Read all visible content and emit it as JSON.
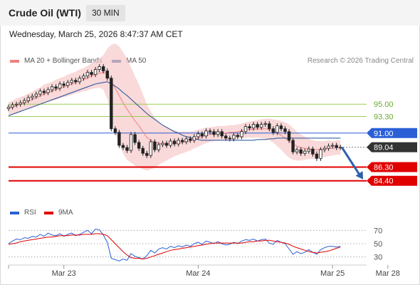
{
  "header": {
    "instrument": "Crude Oil (WTI)",
    "timeframe": "30 MIN",
    "datetime": "Wednesday, March 25, 2026 8:47:37 AM CET"
  },
  "legend": {
    "items": [
      {
        "label": "MA 20 + Bollinger Bands",
        "color": "#f08080"
      },
      {
        "label": "MA 50",
        "color": "#1f4e99"
      }
    ],
    "credit": "Research © 2026 Trading Central"
  },
  "chart_data": [
    {
      "type": "candlestick",
      "ylim": [
        82.6,
        96.6
      ],
      "x_ticks": [
        {
          "label": "Mar 23",
          "index": 14
        },
        {
          "label": "Mar 24",
          "index": 48
        },
        {
          "label": "Mar 25",
          "index": 82
        },
        {
          "label": "Mar 28",
          "index": 96
        }
      ],
      "levels": [
        {
          "value": 95.0,
          "label": "95.00",
          "role": "resistance",
          "color": "#9acd55"
        },
        {
          "value": 93.3,
          "label": "93.30",
          "role": "resistance",
          "color": "#9acd55"
        },
        {
          "value": 91.0,
          "label": "91.00",
          "role": "pivot",
          "color": "#2a5fd6"
        },
        {
          "value": 89.04,
          "label": "89.04",
          "role": "last",
          "color": "#333333"
        },
        {
          "value": 86.3,
          "label": "86.30",
          "role": "support",
          "color": "#e00000"
        },
        {
          "value": 84.4,
          "label": "84.40",
          "role": "support",
          "color": "#e00000"
        }
      ],
      "close": [
        94.6,
        94.9,
        95.0,
        95.2,
        95.5,
        95.9,
        96.1,
        96.4,
        96.8,
        96.6,
        97.0,
        97.4,
        97.2,
        97.8,
        97.6,
        98.0,
        98.3,
        98.1,
        98.6,
        98.9,
        99.4,
        99.1,
        99.8,
        100.2,
        99.6,
        98.6,
        91.6,
        91.1,
        89.3,
        89.0,
        88.6,
        90.8,
        89.7,
        88.9,
        88.2,
        87.9,
        89.8,
        88.7,
        89.4,
        89.6,
        89.3,
        89.9,
        89.5,
        90.0,
        89.8,
        90.2,
        90.0,
        90.5,
        90.9,
        90.6,
        91.3,
        91.2,
        90.8,
        91.2,
        90.6,
        90.3,
        90.2,
        90.7,
        90.5,
        91.2,
        91.9,
        91.7,
        92.2,
        91.8,
        92.2,
        92.3,
        91.6,
        91.1,
        92.0,
        91.6,
        91.2,
        90.0,
        88.4,
        88.7,
        88.2,
        88.5,
        88.8,
        88.1,
        87.5,
        88.7,
        88.9,
        89.2,
        89.3,
        89.0,
        89.04
      ],
      "ma20": [
        94.4,
        94.6,
        94.8,
        95.0,
        95.2,
        95.4,
        95.6,
        95.9,
        96.1,
        96.4,
        96.6,
        96.8,
        97.0,
        97.2,
        97.4,
        97.6,
        97.8,
        98.0,
        98.2,
        98.4,
        98.6,
        98.9,
        99.1,
        99.3,
        99.4,
        99.2,
        98.2,
        97.2,
        96.2,
        95.2,
        94.3,
        93.5,
        92.7,
        92.0,
        91.2,
        90.4,
        90.0,
        89.7,
        89.6,
        89.5,
        89.5,
        89.5,
        89.6,
        89.6,
        89.7,
        89.8,
        89.9,
        90.1,
        90.3,
        90.5,
        90.7,
        90.8,
        90.9,
        91.0,
        91.0,
        91.0,
        91.1,
        91.1,
        91.2,
        91.3,
        91.4,
        91.5,
        91.5,
        91.6,
        91.6,
        91.6,
        91.5,
        91.3,
        91.0,
        90.7,
        90.3,
        89.9,
        89.5,
        89.2,
        89.0,
        88.9,
        88.8,
        88.7,
        88.7,
        88.8,
        88.8,
        88.9,
        88.9,
        89.0,
        89.0
      ],
      "ma50": [
        93.4,
        93.6,
        93.8,
        94.0,
        94.2,
        94.4,
        94.6,
        94.8,
        95.0,
        95.2,
        95.4,
        95.6,
        95.8,
        96.0,
        96.2,
        96.4,
        96.6,
        96.8,
        97.0,
        97.2,
        97.4,
        97.6,
        97.8,
        97.9,
        98.0,
        98.1,
        97.8,
        97.5,
        97.1,
        96.6,
        96.2,
        95.7,
        95.2,
        94.7,
        94.2,
        93.7,
        93.3,
        92.9,
        92.5,
        92.1,
        91.8,
        91.5,
        91.2,
        91.0,
        90.7,
        90.5,
        90.4,
        90.2,
        90.1,
        90.0,
        90.0,
        90.0,
        90.0,
        90.0,
        90.0,
        90.0,
        90.0,
        90.0,
        90.0,
        90.0,
        90.0,
        90.0,
        90.0,
        90.1,
        90.1,
        90.1,
        90.2,
        90.2,
        90.3,
        90.3,
        90.3,
        90.3,
        90.3,
        90.3,
        90.3,
        90.3,
        90.3,
        90.3,
        90.3,
        90.3,
        90.3,
        90.3,
        90.3,
        90.3,
        90.3
      ],
      "bollinger_width": [
        0.9,
        0.9,
        1.0,
        1.0,
        1.0,
        1.1,
        1.1,
        1.2,
        1.2,
        1.3,
        1.3,
        1.3,
        1.4,
        1.4,
        1.4,
        1.5,
        1.5,
        1.5,
        1.6,
        1.6,
        1.7,
        1.8,
        1.9,
        2.0,
        2.4,
        3.5,
        5.0,
        6.2,
        6.8,
        7.0,
        7.0,
        6.6,
        6.2,
        5.7,
        5.2,
        4.6,
        4.0,
        3.5,
        3.0,
        2.6,
        2.3,
        2.0,
        1.8,
        1.6,
        1.5,
        1.4,
        1.3,
        1.2,
        1.2,
        1.1,
        1.1,
        1.0,
        1.0,
        1.0,
        1.0,
        1.0,
        1.0,
        1.0,
        1.0,
        1.0,
        1.1,
        1.1,
        1.2,
        1.2,
        1.3,
        1.4,
        1.5,
        1.6,
        1.8,
        2.0,
        2.2,
        2.3,
        2.2,
        2.0,
        1.8,
        1.6,
        1.4,
        1.3,
        1.2,
        1.1,
        1.1,
        1.1,
        1.0,
        1.0,
        1.0
      ],
      "forecast": {
        "from": 89.04,
        "to": 84.4
      }
    },
    {
      "type": "line",
      "title": "RSI",
      "series": [
        {
          "name": "RSI",
          "color": "#2a5fd6"
        },
        {
          "name": "9MA",
          "color": "#e00000"
        }
      ],
      "ylim": [
        20,
        80
      ],
      "y_ticks": [
        70,
        50,
        30
      ],
      "rsi": [
        50,
        54,
        57,
        56,
        59,
        58,
        61,
        60,
        64,
        61,
        66,
        63,
        62,
        65,
        61,
        64,
        66,
        62,
        64,
        67,
        70,
        65,
        72,
        71,
        63,
        52,
        28,
        26,
        24,
        27,
        25,
        35,
        31,
        29,
        27,
        32,
        40,
        36,
        42,
        44,
        42,
        46,
        44,
        47,
        45,
        48,
        46,
        50,
        52,
        49,
        54,
        52,
        50,
        53,
        50,
        48,
        49,
        52,
        50,
        54,
        56,
        55,
        57,
        54,
        56,
        57,
        51,
        49,
        55,
        52,
        50,
        42,
        34,
        38,
        35,
        37,
        41,
        37,
        34,
        41,
        44,
        46,
        46,
        45,
        46
      ],
      "ma9": [
        49,
        50,
        51,
        53,
        54,
        55,
        56,
        57,
        58,
        59,
        60,
        60,
        61,
        62,
        62,
        62,
        63,
        63,
        63,
        64,
        64,
        64,
        65,
        65,
        64,
        62,
        56,
        50,
        44,
        38,
        33,
        29,
        28,
        28,
        27,
        28,
        30,
        32,
        34,
        36,
        38,
        40,
        41,
        42,
        43,
        44,
        45,
        46,
        47,
        48,
        49,
        50,
        51,
        51,
        51,
        51,
        51,
        51,
        51,
        51,
        52,
        53,
        53,
        54,
        54,
        55,
        55,
        54,
        53,
        52,
        51,
        49,
        46,
        44,
        42,
        40,
        38,
        37,
        36,
        37,
        38,
        39,
        41,
        43,
        45
      ]
    }
  ]
}
